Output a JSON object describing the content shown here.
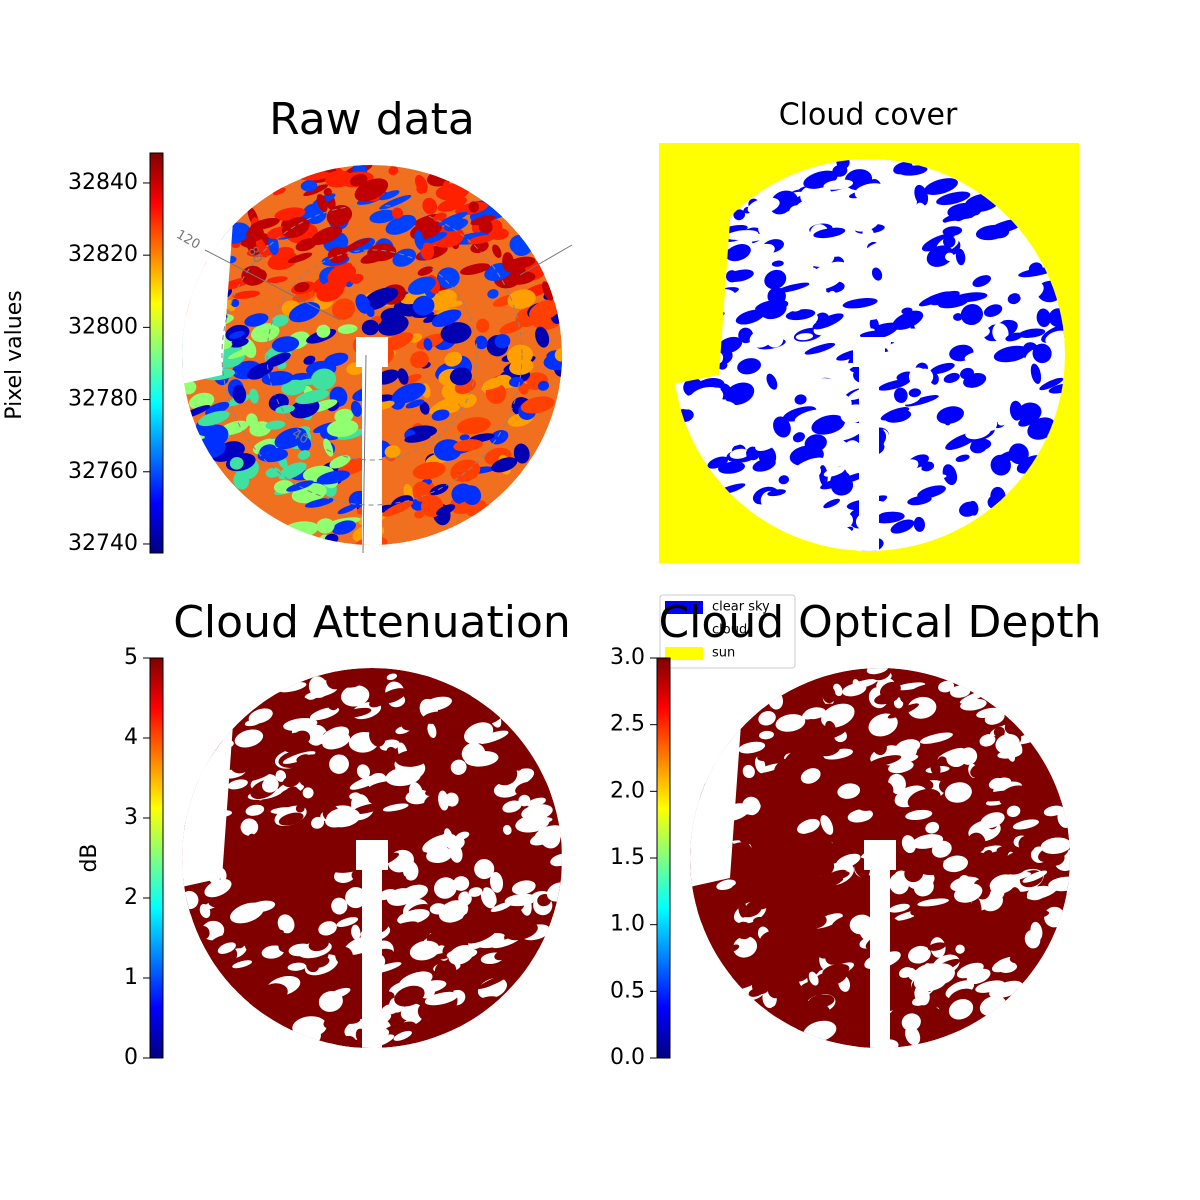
{
  "chart_data": [
    {
      "type": "image",
      "title": "Raw data",
      "colormap": "jet",
      "colorbar_label": "Pixel values",
      "ylim": [
        32737.5,
        32848.3
      ],
      "yticks": [
        32740,
        32760,
        32780,
        32800,
        32820,
        32840
      ],
      "annotations": [
        "120",
        "80",
        "40"
      ]
    },
    {
      "type": "categorical-image",
      "title": "Cloud cover",
      "series": [
        {
          "name": "clear sky",
          "color": "#0000ff"
        },
        {
          "name": "cloud",
          "color": "#ffffff"
        },
        {
          "name": "sun",
          "color": "#ffff00"
        }
      ]
    },
    {
      "type": "image",
      "title": "Cloud Attenuation",
      "colormap": "jet",
      "colorbar_label": "dB",
      "ylim": [
        0,
        5
      ],
      "yticks": [
        0,
        1,
        2,
        3,
        4,
        5
      ]
    },
    {
      "type": "image",
      "title": "Cloud Optical Depth",
      "colormap": "jet",
      "ylim": [
        0,
        3
      ],
      "yticks": [
        {
          "value": 0,
          "label": "0.0"
        },
        0.5,
        {
          "value": 1,
          "label": "1.0"
        },
        1.5,
        {
          "value": 2,
          "label": "2.0"
        },
        2.5,
        {
          "value": 3,
          "label": "3.0"
        }
      ]
    }
  ]
}
